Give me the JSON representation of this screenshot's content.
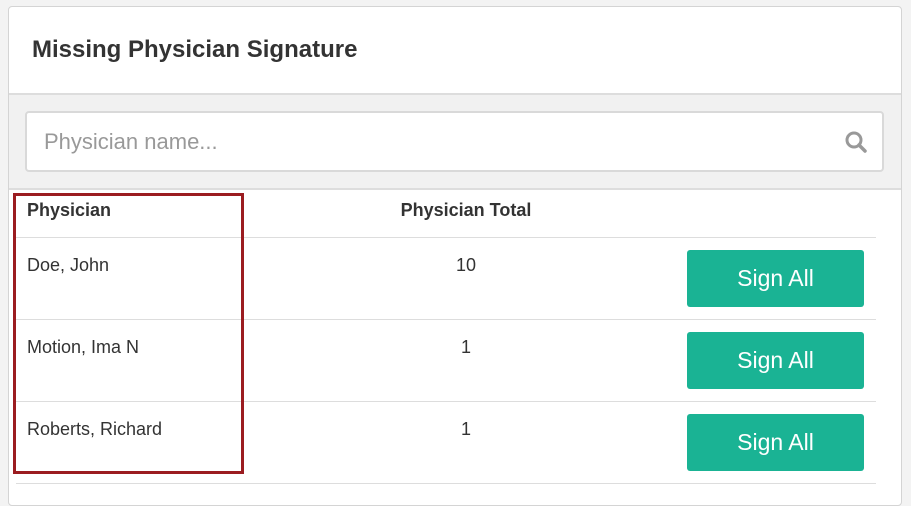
{
  "title": "Missing Physician Signature",
  "search": {
    "placeholder": "Physician name...",
    "value": "",
    "icon": "search-icon"
  },
  "table": {
    "headers": [
      "Physician",
      "Physician Total",
      ""
    ],
    "rows": [
      {
        "physician": "Doe, John",
        "total": "10",
        "action": "Sign All"
      },
      {
        "physician": "Motion, Ima N",
        "total": "1",
        "action": "Sign All"
      },
      {
        "physician": "Roberts, Richard",
        "total": "1",
        "action": "Sign All"
      }
    ]
  },
  "colors": {
    "accent": "#1ab394",
    "highlight": "#9b1c20"
  }
}
